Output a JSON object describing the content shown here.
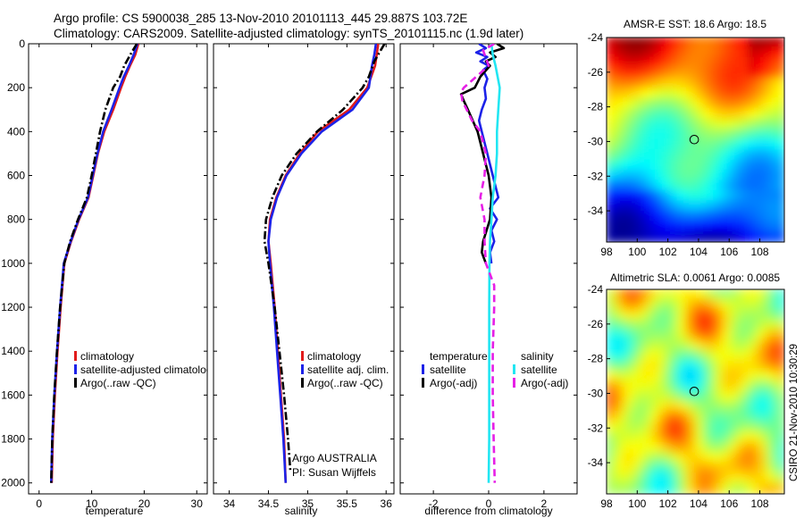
{
  "figure": {
    "title_line1": "Argo profile: CS 5900038_285 13-Nov-2010 20101113_445 29.887S 103.72E",
    "title_line2": "Climatology: CARS2009. Satellite-adjusted climatology: synTS_20101115.nc (1.9d later)",
    "credit": "CSIRO 21-Nov-2010 10:30:29",
    "argo_label": "Argo AUSTRALIA",
    "pi_label": "PI: Susan Wijffels"
  },
  "colors": {
    "climatology": "#e11b1b",
    "satellite": "#1c22e8",
    "argo": "#000000",
    "salinity_satellite": "#22e6f2",
    "salinity_argo": "#e61fe6"
  },
  "chart_data": [
    {
      "type": "line",
      "title": "",
      "xlabel": "temperature",
      "ylabel": "",
      "xlim": [
        -2,
        32
      ],
      "ylim": [
        2050,
        0
      ],
      "xticks": [
        0,
        10,
        20,
        30
      ],
      "yticks": [
        0,
        200,
        400,
        600,
        800,
        1000,
        1200,
        1400,
        1600,
        1800,
        2000
      ],
      "legend": [
        "climatology",
        "satellite-adjusted climatology",
        "Argo(..raw -QC)"
      ],
      "series": [
        {
          "name": "climatology",
          "style": "solid",
          "color": "#e11b1b",
          "depth": [
            0,
            50,
            100,
            150,
            200,
            300,
            400,
            500,
            600,
            700,
            800,
            900,
            1000,
            1200,
            1400,
            1600,
            1800,
            2000
          ],
          "values": [
            18.9,
            18.3,
            17.3,
            16.4,
            15.6,
            14.1,
            12.4,
            11.2,
            10.3,
            9.4,
            7.6,
            6.1,
            4.8,
            4.1,
            3.5,
            3.0,
            2.6,
            2.4
          ]
        },
        {
          "name": "satellite-adjusted climatology",
          "style": "solid",
          "color": "#1c22e8",
          "depth": [
            0,
            50,
            100,
            150,
            200,
            300,
            400,
            500,
            600,
            700,
            800,
            900,
            1000,
            1200,
            1400,
            1600,
            1800,
            2000
          ],
          "values": [
            18.7,
            18.0,
            17.1,
            16.1,
            15.3,
            13.8,
            12.2,
            11.1,
            10.2,
            9.3,
            7.5,
            6.0,
            4.7,
            4.0,
            3.4,
            2.9,
            2.5,
            2.3
          ]
        },
        {
          "name": "Argo(..raw -QC)",
          "style": "dashdot",
          "color": "#000000",
          "depth": [
            0,
            40,
            100,
            150,
            200,
            300,
            400,
            500,
            600,
            700,
            800,
            900,
            1000,
            1200,
            1400,
            1600,
            1800,
            2000
          ],
          "values": [
            18.6,
            17.6,
            16.2,
            15.4,
            14.1,
            12.6,
            11.6,
            10.8,
            10.0,
            9.1,
            7.4,
            5.9,
            4.8,
            4.0,
            3.4,
            2.9,
            2.5,
            2.3
          ]
        }
      ]
    },
    {
      "type": "line",
      "title": "",
      "xlabel": "salinity",
      "ylabel": "",
      "xlim": [
        33.8,
        36.1
      ],
      "ylim": [
        2050,
        0
      ],
      "xticks": [
        34,
        34.5,
        35,
        35.5,
        36
      ],
      "legend": [
        "climatology",
        "satellite adj. clim.",
        "Argo(..raw -QC)"
      ],
      "series": [
        {
          "name": "climatology",
          "style": "solid",
          "color": "#e11b1b",
          "depth": [
            0,
            50,
            100,
            200,
            300,
            400,
            500,
            600,
            700,
            800,
            900,
            1000,
            1200,
            1400,
            1600,
            1800,
            2000
          ],
          "values": [
            35.9,
            35.88,
            35.86,
            35.76,
            35.53,
            35.13,
            34.9,
            34.72,
            34.6,
            34.52,
            34.5,
            34.53,
            34.58,
            34.62,
            34.66,
            34.7,
            34.72
          ]
        },
        {
          "name": "satellite adj. clim.",
          "style": "solid",
          "color": "#1c22e8",
          "depth": [
            0,
            50,
            100,
            200,
            300,
            400,
            500,
            600,
            700,
            800,
            900,
            1000,
            1200,
            1400,
            1600,
            1800,
            2000
          ],
          "values": [
            35.87,
            35.85,
            35.82,
            35.78,
            35.57,
            35.18,
            34.92,
            34.73,
            34.61,
            34.53,
            34.5,
            34.52,
            34.57,
            34.61,
            34.65,
            34.69,
            34.72
          ]
        },
        {
          "name": "Argo(..raw -QC)",
          "style": "dashdot",
          "color": "#000000",
          "depth": [
            0,
            30,
            80,
            150,
            200,
            300,
            400,
            500,
            600,
            700,
            800,
            900,
            1000,
            1200,
            1400,
            1600,
            1800,
            1950
          ],
          "values": [
            35.98,
            35.93,
            35.85,
            35.78,
            35.7,
            35.45,
            35.12,
            34.86,
            34.67,
            34.55,
            34.47,
            34.45,
            34.5,
            34.58,
            34.64,
            34.7,
            34.75,
            34.78
          ]
        }
      ]
    },
    {
      "type": "line",
      "title": "",
      "xlabel": "difference from climatology",
      "ylabel": "",
      "xlim": [
        -3.2,
        3.2
      ],
      "ylim": [
        2050,
        0
      ],
      "xticks": [
        -2,
        0,
        2
      ],
      "legend": [
        "temperature",
        "satellite",
        "Argo(-adj)",
        "salinity",
        "satellite",
        "Argo(-adj)"
      ],
      "series": [
        {
          "name": "temperature satellite",
          "style": "solid",
          "color": "#1c22e8",
          "depth": [
            0,
            20,
            40,
            60,
            80,
            100,
            120,
            160,
            200,
            250,
            300,
            350,
            400,
            500,
            600,
            700,
            750,
            800,
            850,
            900,
            950,
            1000
          ],
          "values": [
            -0.35,
            -0.1,
            -0.45,
            -0.05,
            -0.3,
            0.0,
            -0.2,
            -0.05,
            -0.15,
            -0.1,
            -0.25,
            -0.35,
            -0.25,
            -0.05,
            0.15,
            0.35,
            0.05,
            0.3,
            0.1,
            0.2,
            0.05,
            0.1
          ]
        },
        {
          "name": "temperature Argo(-adj)",
          "style": "solid",
          "color": "#000000",
          "depth": [
            0,
            20,
            40,
            60,
            80,
            100,
            150,
            200,
            230,
            260,
            300,
            400,
            500,
            600,
            700,
            800,
            900,
            950,
            1000
          ],
          "values": [
            0.3,
            0.55,
            0.05,
            0.25,
            -0.1,
            0.05,
            -0.3,
            -0.5,
            -1.0,
            -0.9,
            -0.75,
            -0.4,
            -0.2,
            0.0,
            0.1,
            0.05,
            -0.2,
            -0.25,
            -0.1
          ]
        },
        {
          "name": "salinity satellite",
          "style": "solid",
          "color": "#22e6f2",
          "depth": [
            0,
            50,
            100,
            200,
            300,
            400,
            500,
            600,
            700,
            800,
            900,
            1000,
            1200,
            1400,
            1600,
            1800,
            2000
          ],
          "values": [
            0.1,
            0.15,
            0.25,
            0.4,
            0.35,
            0.3,
            0.3,
            0.25,
            0.15,
            0.1,
            0.05,
            0.03,
            0.02,
            0.02,
            0.02,
            0.02,
            0.0
          ]
        },
        {
          "name": "salinity Argo(-adj)",
          "style": "dashed",
          "color": "#e61fe6",
          "depth": [
            0,
            30,
            100,
            200,
            220,
            260,
            350,
            400,
            500,
            600,
            700,
            800,
            900,
            1000,
            1100,
            1200,
            1400,
            1600,
            1800,
            2000
          ],
          "values": [
            0.2,
            -0.2,
            0.0,
            -0.9,
            -1.0,
            -0.95,
            -0.6,
            -0.3,
            -0.1,
            -0.15,
            -0.3,
            -0.15,
            -0.15,
            -0.1,
            0.2,
            0.2,
            0.15,
            0.15,
            0.18,
            0.22
          ]
        }
      ]
    },
    {
      "type": "heatmap",
      "title": "AMSR-E SST: 18.6 Argo: 18.5",
      "xlabel": "",
      "ylabel": "",
      "xlim": [
        98,
        109.6
      ],
      "ylim": [
        -35.8,
        -24
      ],
      "xticks": [
        98,
        100,
        102,
        104,
        106,
        108
      ],
      "yticks": [
        -24,
        -26,
        -28,
        -30,
        -32,
        -34
      ],
      "marker": {
        "lon": 103.72,
        "lat": -29.887
      }
    },
    {
      "type": "heatmap",
      "title": "Altimetric SLA: 0.0061 Argo: 0.0085",
      "xlabel": "",
      "ylabel": "",
      "xlim": [
        98,
        109.6
      ],
      "ylim": [
        -35.8,
        -24
      ],
      "xticks": [
        98,
        100,
        102,
        104,
        106,
        108
      ],
      "yticks": [
        -24,
        -26,
        -28,
        -30,
        -32,
        -34
      ],
      "marker": {
        "lon": 103.72,
        "lat": -29.887
      }
    }
  ]
}
